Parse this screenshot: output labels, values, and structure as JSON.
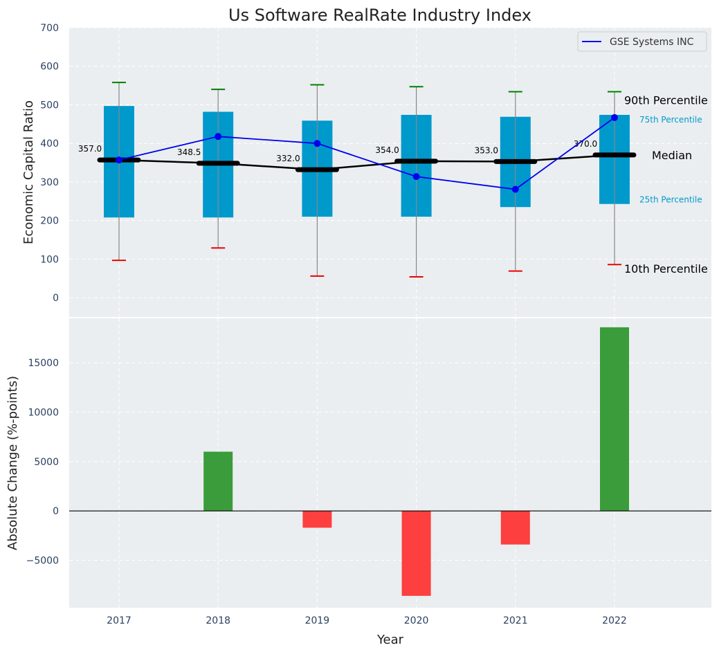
{
  "chart_data": [
    {
      "type": "box",
      "title": "Us Software RealRate Industry Index",
      "ylabel": "Economic Capital Ratio",
      "ylim": [
        -50,
        700
      ],
      "yticks": [
        0,
        100,
        200,
        300,
        400,
        500,
        600,
        700
      ],
      "categories": [
        "2017",
        "2018",
        "2019",
        "2020",
        "2021",
        "2022"
      ],
      "p10": [
        97,
        129,
        56,
        54,
        69,
        86
      ],
      "p25": [
        208,
        208,
        210,
        210,
        235,
        243
      ],
      "median": [
        357.0,
        348.5,
        332.0,
        354.0,
        353.0,
        370.0
      ],
      "median_labels": [
        "357.0",
        "348.5",
        "332.0",
        "354.0",
        "353.0",
        "370.0"
      ],
      "p75": [
        497,
        482,
        459,
        474,
        469,
        474
      ],
      "p90": [
        558,
        540,
        552,
        547,
        534,
        534
      ],
      "company": {
        "name": "GSE Systems INC",
        "values": [
          357,
          418,
          400,
          314,
          281,
          467
        ]
      },
      "annotations": {
        "p90": "90th Percentile",
        "p75": "75th Percentile",
        "median": "Median",
        "p25": "25th Percentile",
        "p10": "10th Percentile"
      },
      "legend": "top-right",
      "grid": true,
      "colors": {
        "box": "#0099cc",
        "median": "#000000",
        "company": "#0000ee",
        "p90_cap": "#008000",
        "p10_cap": "#ee0000",
        "whisker": "#888888",
        "background": "#eaeef0",
        "pct_label": "#0099cc"
      }
    },
    {
      "type": "bar",
      "categories": [
        "2017",
        "2018",
        "2019",
        "2020",
        "2021",
        "2022"
      ],
      "values": [
        0,
        6000,
        -1700,
        -8600,
        -3400,
        18600
      ],
      "ylabel": "Absolute Change (%-points)",
      "xlabel": "Year",
      "ylim": [
        -9800,
        19500
      ],
      "yticks": [
        -5000,
        0,
        5000,
        10000,
        15000
      ],
      "ytick_labels": [
        "−5000",
        "0",
        "5000",
        "10000",
        "15000"
      ],
      "colors": {
        "positive": "#3a9c3a",
        "negative": "#fd3f3f"
      }
    }
  ]
}
